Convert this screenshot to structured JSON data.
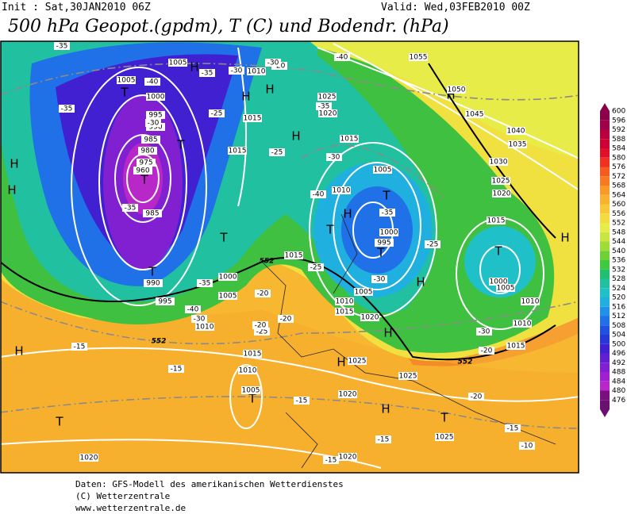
{
  "header": {
    "init": "Init : Sat,30JAN2010 06Z",
    "valid": "Valid: Wed,03FEB2010 00Z",
    "title": "500 hPa Geopot.(gpdm), T (C) und Bodendr. (hPa)"
  },
  "legend": {
    "levels": [
      600,
      596,
      592,
      588,
      584,
      580,
      576,
      572,
      568,
      564,
      560,
      556,
      552,
      548,
      544,
      540,
      536,
      532,
      528,
      524,
      520,
      516,
      512,
      508,
      504,
      500,
      496,
      492,
      488,
      484,
      480,
      476
    ],
    "colors": [
      "#8b004b",
      "#a0004a",
      "#b8003f",
      "#cc0033",
      "#e0102a",
      "#f03020",
      "#f55a1e",
      "#f77a22",
      "#f89a28",
      "#f8b230",
      "#f8c838",
      "#f4dc40",
      "#e8ec48",
      "#c8e640",
      "#a0dc38",
      "#70d038",
      "#40c840",
      "#20c070",
      "#20c0a0",
      "#20c0c8",
      "#20b0e0",
      "#2090e8",
      "#2070e8",
      "#2050e0",
      "#2838d8",
      "#4020d0",
      "#6020d0",
      "#8020d0",
      "#a020d0",
      "#b828c8",
      "#7a1080",
      "#6a1070"
    ]
  },
  "systems": [
    "H",
    "T",
    "T",
    "T",
    "H",
    "H",
    "H",
    "H",
    "T",
    "T",
    "H",
    "T",
    "T",
    "H",
    "H",
    "T",
    "H",
    "H",
    "T",
    "H",
    "H",
    "T",
    "H",
    "H",
    "T",
    "T"
  ],
  "isobar_labels": [
    "1005",
    "1005",
    "1000",
    "995",
    "990",
    "985",
    "980",
    "975",
    "960",
    "985",
    "990",
    "995",
    "1000",
    "1005",
    "1010",
    "1015",
    "1015",
    "1010",
    "1015",
    "1025",
    "1020",
    "1015",
    "1005",
    "1010",
    "1000",
    "995",
    "1005",
    "1010",
    "1015",
    "1020",
    "1025",
    "1050",
    "1045",
    "1040",
    "1035",
    "1030",
    "1025",
    "1020",
    "1015",
    "1010",
    "1000",
    "1005",
    "1010",
    "1015",
    "1005",
    "1010",
    "1020",
    "1025",
    "1025",
    "1020",
    "1020",
    "1055",
    "1015"
  ],
  "temp_labels": [
    "-35",
    "-40",
    "-35",
    "-35",
    "-30",
    "-25",
    "-20",
    "-25",
    "-30",
    "-35",
    "-40",
    "-40",
    "-30",
    "-35",
    "-30",
    "-35",
    "-25",
    "-30",
    "-35",
    "-40",
    "-30",
    "-25",
    "-20",
    "-20",
    "-25",
    "-30",
    "-20",
    "-15",
    "-15",
    "-15",
    "-20",
    "-15",
    "-15",
    "-10",
    "-15",
    "-20"
  ],
  "contour_labels": [
    "552",
    "552",
    "552"
  ],
  "footer": [
    "Daten: GFS-Modell des amerikanischen Wetterdienstes",
    "(C) Wetterzentrale",
    "www.wetterzentrale.de"
  ]
}
